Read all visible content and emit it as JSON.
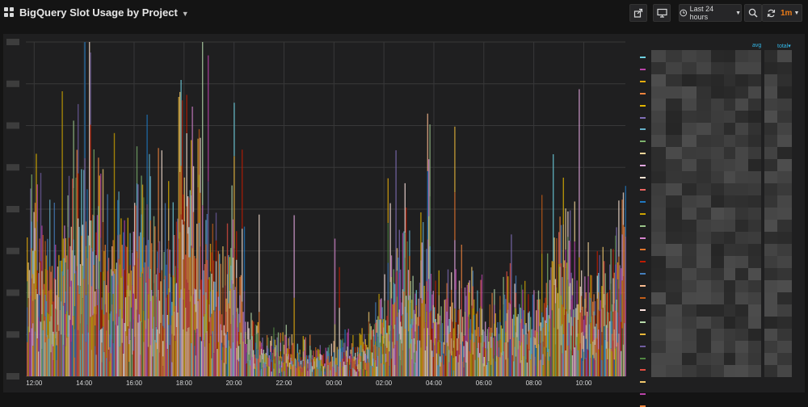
{
  "dashboard": {
    "title": "BigQuery Slot Usage by Project",
    "time_range_label": "Last 24 hours",
    "refresh_interval": "1m",
    "accent_color": "#eb7b18"
  },
  "toolbar_icons": [
    "share-icon",
    "tv-mode-icon",
    "clock-icon",
    "zoom-out-icon",
    "refresh-icon"
  ],
  "legend": {
    "columns": [
      "avg",
      "total"
    ],
    "sort_indicator": "▾",
    "series_colors": [
      "#6ed0e0",
      "#ba43a9",
      "#e5ac0e",
      "#ef843c",
      "#e0b400",
      "#806eb7",
      "#64b0c8",
      "#7eb26d",
      "#f4d598",
      "#e5a8e2",
      "#f9e2d2",
      "#ea6460",
      "#1f78c1",
      "#cca300",
      "#9ac48a",
      "#d683ce",
      "#e0752d",
      "#bf1b00",
      "#447ebc",
      "#f9ba8f",
      "#c15c17",
      "#fce2de",
      "#b7dbab",
      "#eab839",
      "#705da0",
      "#508642",
      "#e24d42",
      "#f2c96d",
      "#ba43a9",
      "#ef843c"
    ]
  },
  "chart_data": {
    "type": "area",
    "x_tick_labels": [
      "12:00",
      "14:00",
      "16:00",
      "18:00",
      "20:00",
      "22:00",
      "00:00",
      "02:00",
      "04:00",
      "06:00",
      "08:00",
      "10:00"
    ],
    "y_tick_labels_visible": false,
    "y_tick_count": 8,
    "grid": true,
    "legend_placement": "right",
    "stacked": true,
    "series_count": 30,
    "activity_profile": [
      {
        "t": "11:45",
        "level": 0.4
      },
      {
        "t": "12:00",
        "level": 0.55
      },
      {
        "t": "12:30",
        "level": 0.35
      },
      {
        "t": "13:00",
        "level": 0.45
      },
      {
        "t": "13:30",
        "level": 0.6
      },
      {
        "t": "14:00",
        "level": 0.75
      },
      {
        "t": "14:30",
        "level": 0.5
      },
      {
        "t": "15:00",
        "level": 0.4
      },
      {
        "t": "15:30",
        "level": 0.35
      },
      {
        "t": "16:00",
        "level": 0.45
      },
      {
        "t": "16:30",
        "level": 0.55
      },
      {
        "t": "17:00",
        "level": 0.35
      },
      {
        "t": "17:30",
        "level": 0.45
      },
      {
        "t": "18:00",
        "level": 0.65
      },
      {
        "t": "18:30",
        "level": 0.55
      },
      {
        "t": "19:00",
        "level": 0.45
      },
      {
        "t": "19:30",
        "level": 0.3
      },
      {
        "t": "20:00",
        "level": 0.35
      },
      {
        "t": "20:30",
        "level": 0.15
      },
      {
        "t": "21:00",
        "level": 0.12
      },
      {
        "t": "21:30",
        "level": 0.1
      },
      {
        "t": "22:00",
        "level": 0.12
      },
      {
        "t": "22:30",
        "level": 0.08
      },
      {
        "t": "23:00",
        "level": 0.08
      },
      {
        "t": "23:30",
        "level": 0.07
      },
      {
        "t": "00:00",
        "level": 0.09
      },
      {
        "t": "00:30",
        "level": 0.1
      },
      {
        "t": "01:00",
        "level": 0.12
      },
      {
        "t": "01:30",
        "level": 0.14
      },
      {
        "t": "02:00",
        "level": 0.22
      },
      {
        "t": "02:30",
        "level": 0.38
      },
      {
        "t": "03:00",
        "level": 0.42
      },
      {
        "t": "03:30",
        "level": 0.32
      },
      {
        "t": "04:00",
        "level": 0.25
      },
      {
        "t": "04:30",
        "level": 0.24
      },
      {
        "t": "05:00",
        "level": 0.25
      },
      {
        "t": "05:30",
        "level": 0.26
      },
      {
        "t": "06:00",
        "level": 0.24
      },
      {
        "t": "06:30",
        "level": 0.22
      },
      {
        "t": "07:00",
        "level": 0.28
      },
      {
        "t": "07:30",
        "level": 0.26
      },
      {
        "t": "08:00",
        "level": 0.2
      },
      {
        "t": "08:30",
        "level": 0.25
      },
      {
        "t": "09:00",
        "level": 0.55
      },
      {
        "t": "09:30",
        "level": 0.35
      },
      {
        "t": "10:00",
        "level": 0.3
      },
      {
        "t": "10:30",
        "level": 0.28
      },
      {
        "t": "11:00",
        "level": 0.32
      },
      {
        "t": "11:30",
        "level": 0.45
      }
    ]
  }
}
